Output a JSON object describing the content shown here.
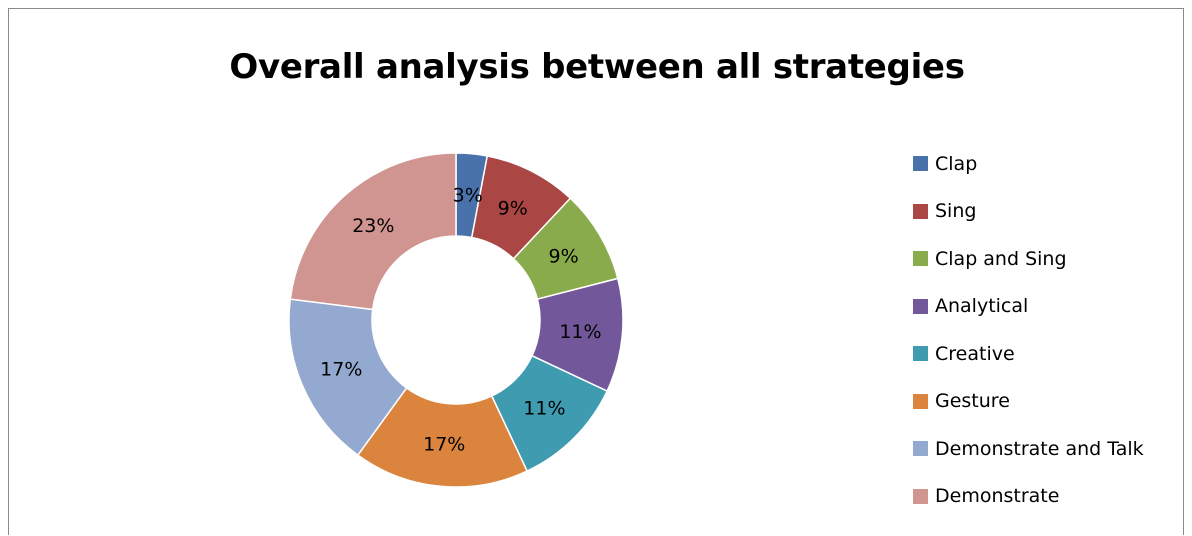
{
  "chart_data": {
    "type": "pie",
    "variant": "doughnut",
    "title": "Overall analysis between all strategies",
    "legend_position": "right",
    "categories": [
      "Clap",
      "Sing",
      "Clap and Sing",
      "Analytical",
      "Creative",
      "Gesture",
      "Demonstrate and Talk",
      "Demonstrate"
    ],
    "values": [
      3,
      9,
      9,
      11,
      11,
      17,
      17,
      23
    ],
    "data_labels": [
      "3%",
      "9%",
      "9%",
      "11%",
      "11%",
      "17%",
      "17%",
      "23%"
    ],
    "colors": [
      "#4a72aa",
      "#aa4643",
      "#8aab4c",
      "#72589a",
      "#3f9bb0",
      "#db843d",
      "#93a9d0",
      "#d09491"
    ]
  }
}
